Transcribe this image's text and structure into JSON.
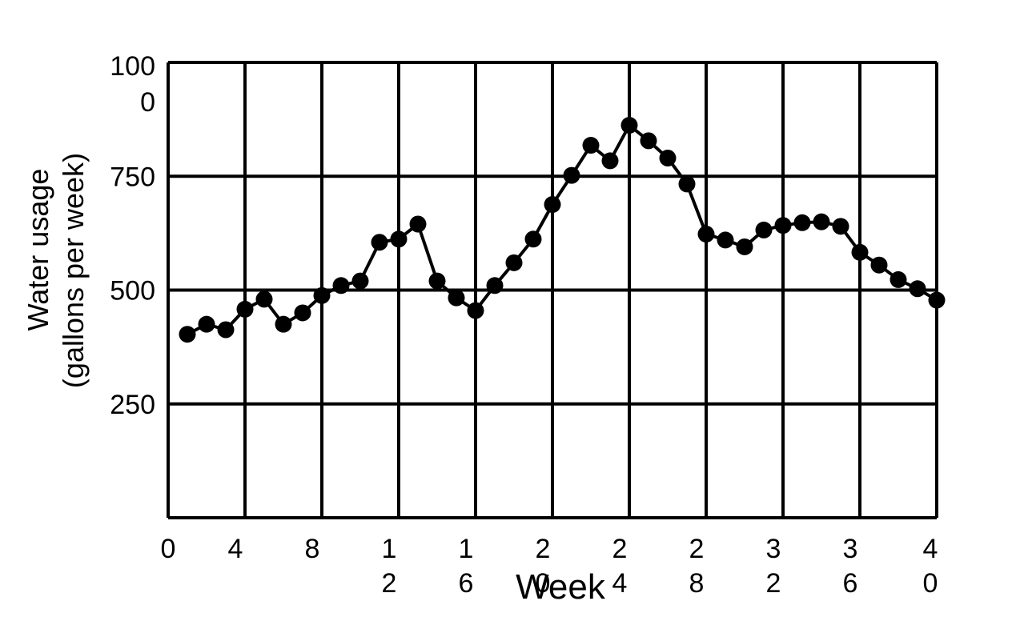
{
  "chart_data": {
    "type": "line",
    "xlabel": "Week",
    "ylabel_line1": "Water usage",
    "ylabel_line2": "(gallons per week)",
    "xlim": [
      0,
      40
    ],
    "ylim": [
      0,
      1000
    ],
    "grid": true,
    "x_ticks": [
      0,
      4,
      8,
      12,
      16,
      20,
      24,
      28,
      32,
      36,
      40
    ],
    "y_ticks": [
      250,
      500,
      750,
      1000
    ],
    "x_tick_labels": [
      [
        "0"
      ],
      [
        "4"
      ],
      [
        "8"
      ],
      [
        "1",
        "2"
      ],
      [
        "1",
        "6"
      ],
      [
        "2",
        "0"
      ],
      [
        "2",
        "4"
      ],
      [
        "2",
        "8"
      ],
      [
        "3",
        "2"
      ],
      [
        "3",
        "6"
      ],
      [
        "4",
        "0"
      ]
    ],
    "y_tick_labels": [
      [
        "250"
      ],
      [
        "500"
      ],
      [
        "750"
      ],
      [
        "100",
        "0"
      ]
    ],
    "series": [
      {
        "color": "#000000",
        "x": [
          1,
          2,
          3,
          4,
          5,
          6,
          7,
          8,
          9,
          10,
          11,
          12,
          13,
          14,
          15,
          16,
          17,
          18,
          19,
          20,
          21,
          22,
          23,
          24,
          25,
          26,
          27,
          28,
          29,
          30,
          31,
          32,
          33,
          34,
          35,
          36,
          37,
          38,
          39,
          40
        ],
        "values": [
          403,
          425,
          413,
          458,
          480,
          425,
          450,
          488,
          510,
          520,
          605,
          612,
          645,
          520,
          483,
          455,
          510,
          560,
          612,
          688,
          752,
          818,
          784,
          862,
          828,
          790,
          733,
          623,
          610,
          595,
          632,
          642,
          648,
          650,
          640,
          583,
          555,
          523,
          503,
          478
        ]
      }
    ]
  }
}
